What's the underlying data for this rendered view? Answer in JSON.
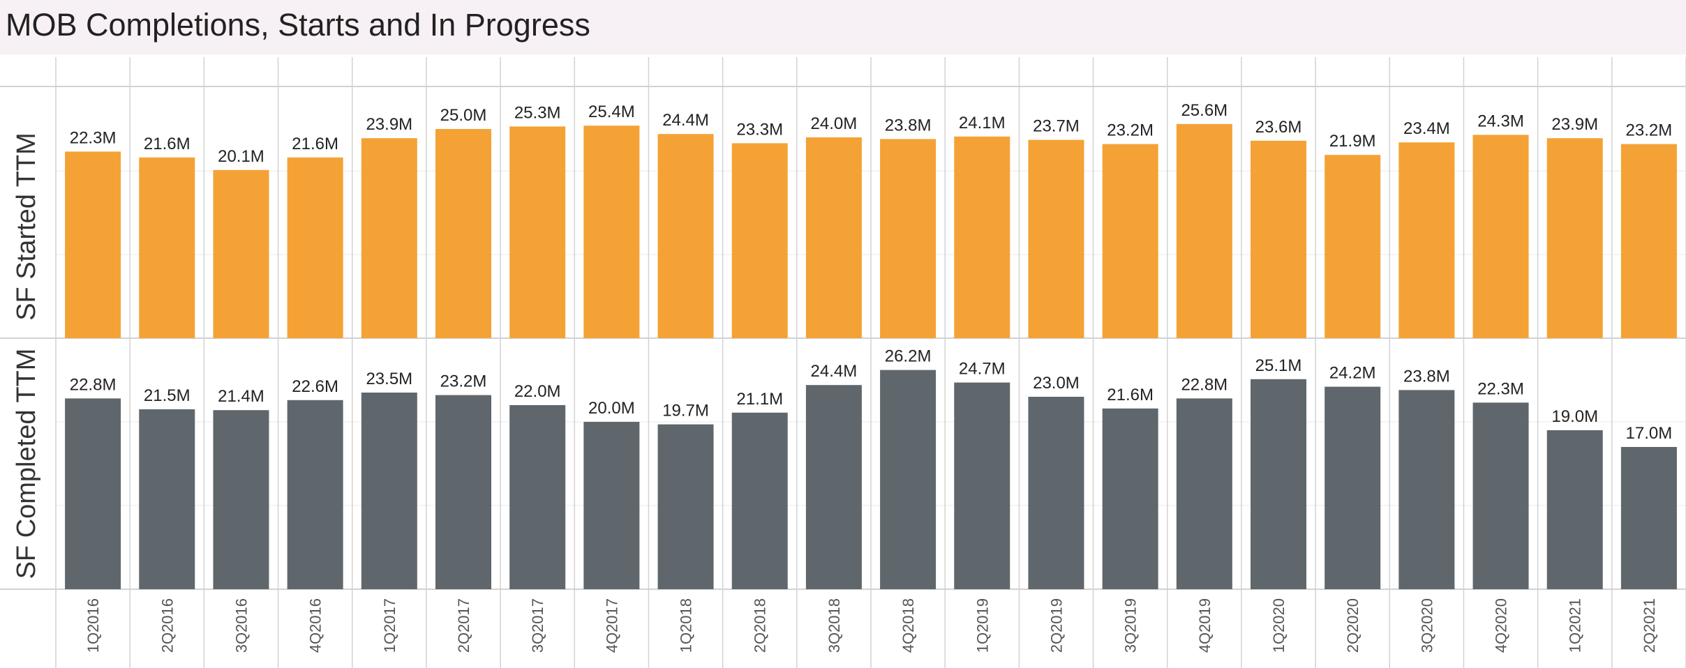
{
  "title": "MOB Completions, Starts and In Progress",
  "colors": {
    "started": "#f4a235",
    "completed": "#5f676c",
    "grid": "#e9e9e9",
    "divider": "#d2d2d2",
    "title_bg": "#f7f0f4"
  },
  "chart_data": {
    "type": "bar",
    "categories": [
      "1Q2016",
      "2Q2016",
      "3Q2016",
      "4Q2016",
      "1Q2017",
      "2Q2017",
      "3Q2017",
      "4Q2017",
      "1Q2018",
      "2Q2018",
      "3Q2018",
      "4Q2018",
      "1Q2019",
      "2Q2019",
      "3Q2019",
      "4Q2019",
      "1Q2020",
      "2Q2020",
      "3Q2020",
      "4Q2020",
      "1Q2021",
      "2Q2021"
    ],
    "series": [
      {
        "name": "SF Started TTM",
        "values": [
          22.3,
          21.6,
          20.1,
          21.6,
          23.9,
          25.0,
          25.3,
          25.4,
          24.4,
          23.3,
          24.0,
          23.8,
          24.1,
          23.7,
          23.2,
          25.6,
          23.6,
          21.9,
          23.4,
          24.3,
          23.9,
          23.2
        ],
        "labels": [
          "22.3M",
          "21.6M",
          "20.1M",
          "21.6M",
          "23.9M",
          "25.0M",
          "25.3M",
          "25.4M",
          "24.4M",
          "23.3M",
          "24.0M",
          "23.8M",
          "24.1M",
          "23.7M",
          "23.2M",
          "25.6M",
          "23.6M",
          "21.9M",
          "23.4M",
          "24.3M",
          "23.9M",
          "23.2M"
        ],
        "color": "#f4a235"
      },
      {
        "name": "SF Completed TTM",
        "values": [
          22.8,
          21.5,
          21.4,
          22.6,
          23.5,
          23.2,
          22.0,
          20.0,
          19.7,
          21.1,
          24.4,
          26.2,
          24.7,
          23.0,
          21.6,
          22.8,
          25.1,
          24.2,
          23.8,
          22.3,
          19.0,
          17.0
        ],
        "labels": [
          "22.8M",
          "21.5M",
          "21.4M",
          "22.6M",
          "23.5M",
          "23.2M",
          "22.0M",
          "20.0M",
          "19.7M",
          "21.1M",
          "24.4M",
          "26.2M",
          "24.7M",
          "23.0M",
          "21.6M",
          "22.8M",
          "25.1M",
          "24.2M",
          "23.8M",
          "22.3M",
          "19.0M",
          "17.0M"
        ],
        "color": "#5f676c"
      }
    ],
    "unit": "M",
    "ylim": [
      0,
      30
    ],
    "grid": true,
    "legend": "none"
  }
}
